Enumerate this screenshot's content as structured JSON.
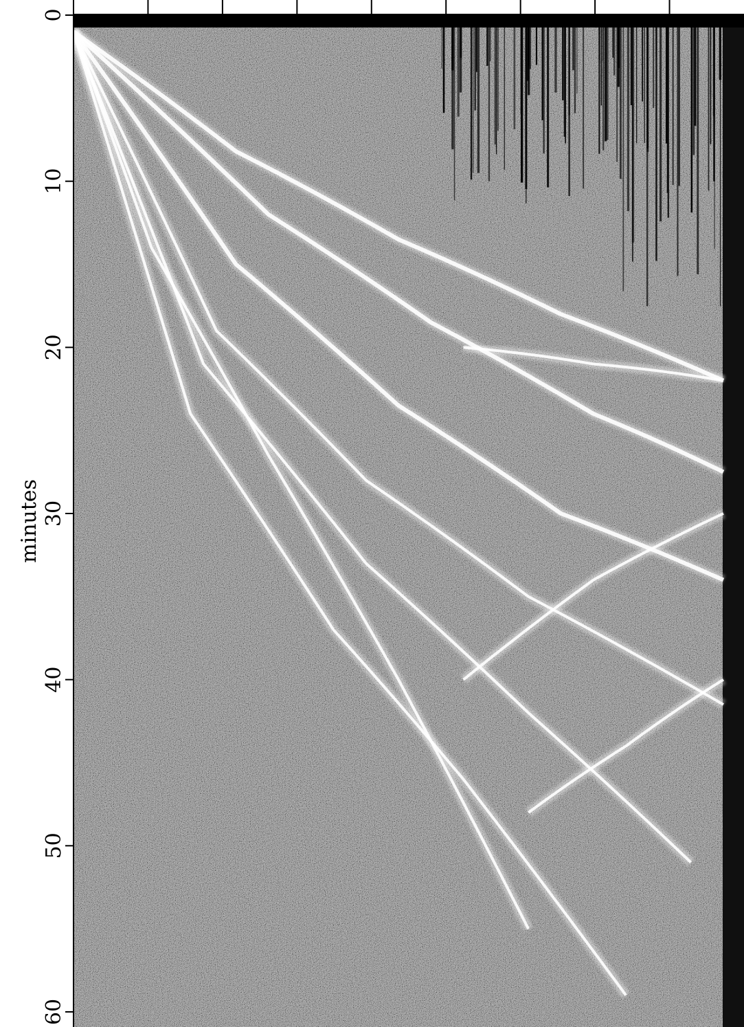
{
  "chart_data": {
    "type": "heatmap",
    "title": "",
    "ylabel": "minutes",
    "xlabel": "",
    "y_axis": {
      "direction": "down",
      "ylim": [
        0,
        60
      ],
      "ticks": [
        0,
        10,
        20,
        30,
        40,
        50,
        60
      ],
      "tick_labels": [
        "0",
        "10",
        "20",
        "30",
        "40",
        "50",
        "60"
      ]
    },
    "x_axis": {
      "tick_count": 9,
      "tick_labels": []
    },
    "colormap": "grayscale",
    "colors": {
      "background_gray": "#7a7a7a",
      "event": "#ffffff",
      "axis": "#000000"
    },
    "phase_arrivals_minutes": {
      "description": "",
      "traces": [
        {
          "points": [
            [
              0.0,
              1.0
            ],
            [
              0.25,
              8.2
            ],
            [
              0.5,
              13.5
            ],
            [
              0.75,
              18.0
            ],
            [
              1.0,
              22.0
            ]
          ]
        },
        {
          "points": [
            [
              0.0,
              1.0
            ],
            [
              0.3,
              12.0
            ],
            [
              0.55,
              18.5
            ],
            [
              0.8,
              24.0
            ],
            [
              1.0,
              27.5
            ]
          ]
        },
        {
          "points": [
            [
              0.0,
              1.0
            ],
            [
              0.25,
              15.0
            ],
            [
              0.5,
              23.5
            ],
            [
              0.75,
              30.0
            ],
            [
              1.0,
              34.0
            ]
          ]
        },
        {
          "points": [
            [
              0.0,
              1.0
            ],
            [
              0.22,
              19.0
            ],
            [
              0.45,
              28.0
            ],
            [
              0.7,
              35.0
            ],
            [
              1.0,
              41.5
            ]
          ]
        },
        {
          "points": [
            [
              0.0,
              1.0
            ],
            [
              0.2,
              21.0
            ],
            [
              0.45,
              33.0
            ],
            [
              0.7,
              42.0
            ],
            [
              0.95,
              51.0
            ]
          ]
        },
        {
          "points": [
            [
              0.0,
              1.0
            ],
            [
              0.18,
              24.0
            ],
            [
              0.4,
              37.0
            ],
            [
              0.6,
              46.0
            ],
            [
              0.85,
              59.0
            ]
          ]
        },
        {
          "points": [
            [
              0.0,
              1.0
            ],
            [
              0.12,
              14.0
            ],
            [
              0.3,
              26.5
            ],
            [
              0.5,
              40.0
            ],
            [
              0.7,
              55.0
            ]
          ]
        },
        {
          "points": [
            [
              0.6,
              20.0
            ],
            [
              0.8,
              21.0
            ],
            [
              1.0,
              22.0
            ]
          ]
        },
        {
          "points": [
            [
              0.6,
              40.0
            ],
            [
              0.8,
              34.0
            ],
            [
              1.0,
              30.0
            ]
          ]
        },
        {
          "points": [
            [
              0.7,
              48.0
            ],
            [
              0.85,
              44.0
            ],
            [
              1.0,
              40.0
            ]
          ]
        }
      ]
    }
  }
}
